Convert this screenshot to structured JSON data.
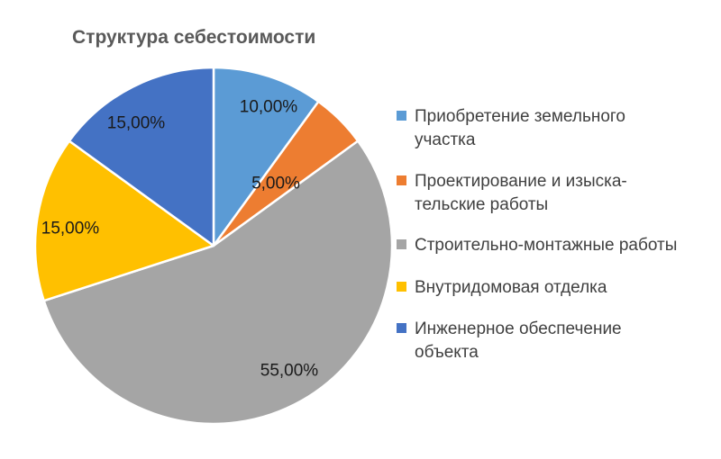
{
  "chart_data": {
    "type": "pie",
    "title": "Структура себестоимости",
    "categories": [
      "Приобретение земельного участка",
      "Проектирование и изыска-тельские работы",
      "Строительно-монтажные работы",
      "Внутридомовая отделка",
      "Инженерное обеспечение объекта"
    ],
    "values": [
      10,
      5,
      55,
      15,
      15
    ],
    "labels": [
      "10,00%",
      "5,00%",
      "55,00%",
      "15,00%",
      "15,00%"
    ],
    "colors": [
      "#5b9bd5",
      "#ed7d31",
      "#a5a5a5",
      "#ffc000",
      "#4472c4"
    ],
    "legend": [
      {
        "lines": [
          "Приобретение земельного",
          "участка"
        ]
      },
      {
        "lines": [
          "Проектирование и изыска-",
          "тельские работы"
        ]
      },
      {
        "lines": [
          "Строительно-монтажные работы"
        ]
      },
      {
        "lines": [
          "Внутридомовая отделка"
        ]
      },
      {
        "lines": [
          "Инженерное обеспечение",
          "объекта"
        ]
      }
    ],
    "legend_position": "right"
  }
}
